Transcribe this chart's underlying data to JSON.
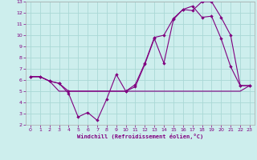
{
  "title": "",
  "xlabel": "Windchill (Refroidissement éolien,°C)",
  "background_color": "#cdeeed",
  "grid_color": "#aad8d6",
  "line_color": "#800080",
  "xlim": [
    -0.5,
    23.5
  ],
  "ylim": [
    2,
    13
  ],
  "xticks": [
    0,
    1,
    2,
    3,
    4,
    5,
    6,
    7,
    8,
    9,
    10,
    11,
    12,
    13,
    14,
    15,
    16,
    17,
    18,
    19,
    20,
    21,
    22,
    23
  ],
  "yticks": [
    2,
    3,
    4,
    5,
    6,
    7,
    8,
    9,
    10,
    11,
    12,
    13
  ],
  "line1_x": [
    0,
    1,
    2,
    3,
    4,
    5,
    6,
    7,
    8,
    9,
    10,
    11,
    12,
    13,
    14,
    15,
    16,
    17,
    18,
    19,
    20,
    21,
    22,
    23
  ],
  "line1_y": [
    6.3,
    6.3,
    5.9,
    5.7,
    4.8,
    2.7,
    3.1,
    2.4,
    4.3,
    6.5,
    5.0,
    5.4,
    7.4,
    9.7,
    7.5,
    11.4,
    12.3,
    12.6,
    11.6,
    11.7,
    9.7,
    7.2,
    5.5,
    5.5
  ],
  "line2_x": [
    0,
    1,
    2,
    3,
    4,
    5,
    6,
    7,
    8,
    9,
    10,
    11,
    12,
    13,
    14,
    15,
    16,
    17,
    18,
    19,
    20,
    21,
    22,
    23
  ],
  "line2_y": [
    6.3,
    6.3,
    5.9,
    5.0,
    5.0,
    5.0,
    5.0,
    5.0,
    5.0,
    5.0,
    5.0,
    5.0,
    5.0,
    5.0,
    5.0,
    5.0,
    5.0,
    5.0,
    5.0,
    5.0,
    5.0,
    5.0,
    5.0,
    5.5
  ],
  "line3_x": [
    0,
    1,
    2,
    3,
    4,
    10,
    11,
    12,
    13,
    14,
    15,
    16,
    17,
    18,
    19,
    20,
    21,
    22,
    23
  ],
  "line3_y": [
    6.3,
    6.3,
    5.9,
    5.7,
    5.0,
    5.0,
    5.6,
    7.5,
    9.8,
    10.0,
    11.5,
    12.3,
    12.2,
    13.0,
    13.0,
    11.6,
    10.0,
    5.5,
    5.5
  ]
}
